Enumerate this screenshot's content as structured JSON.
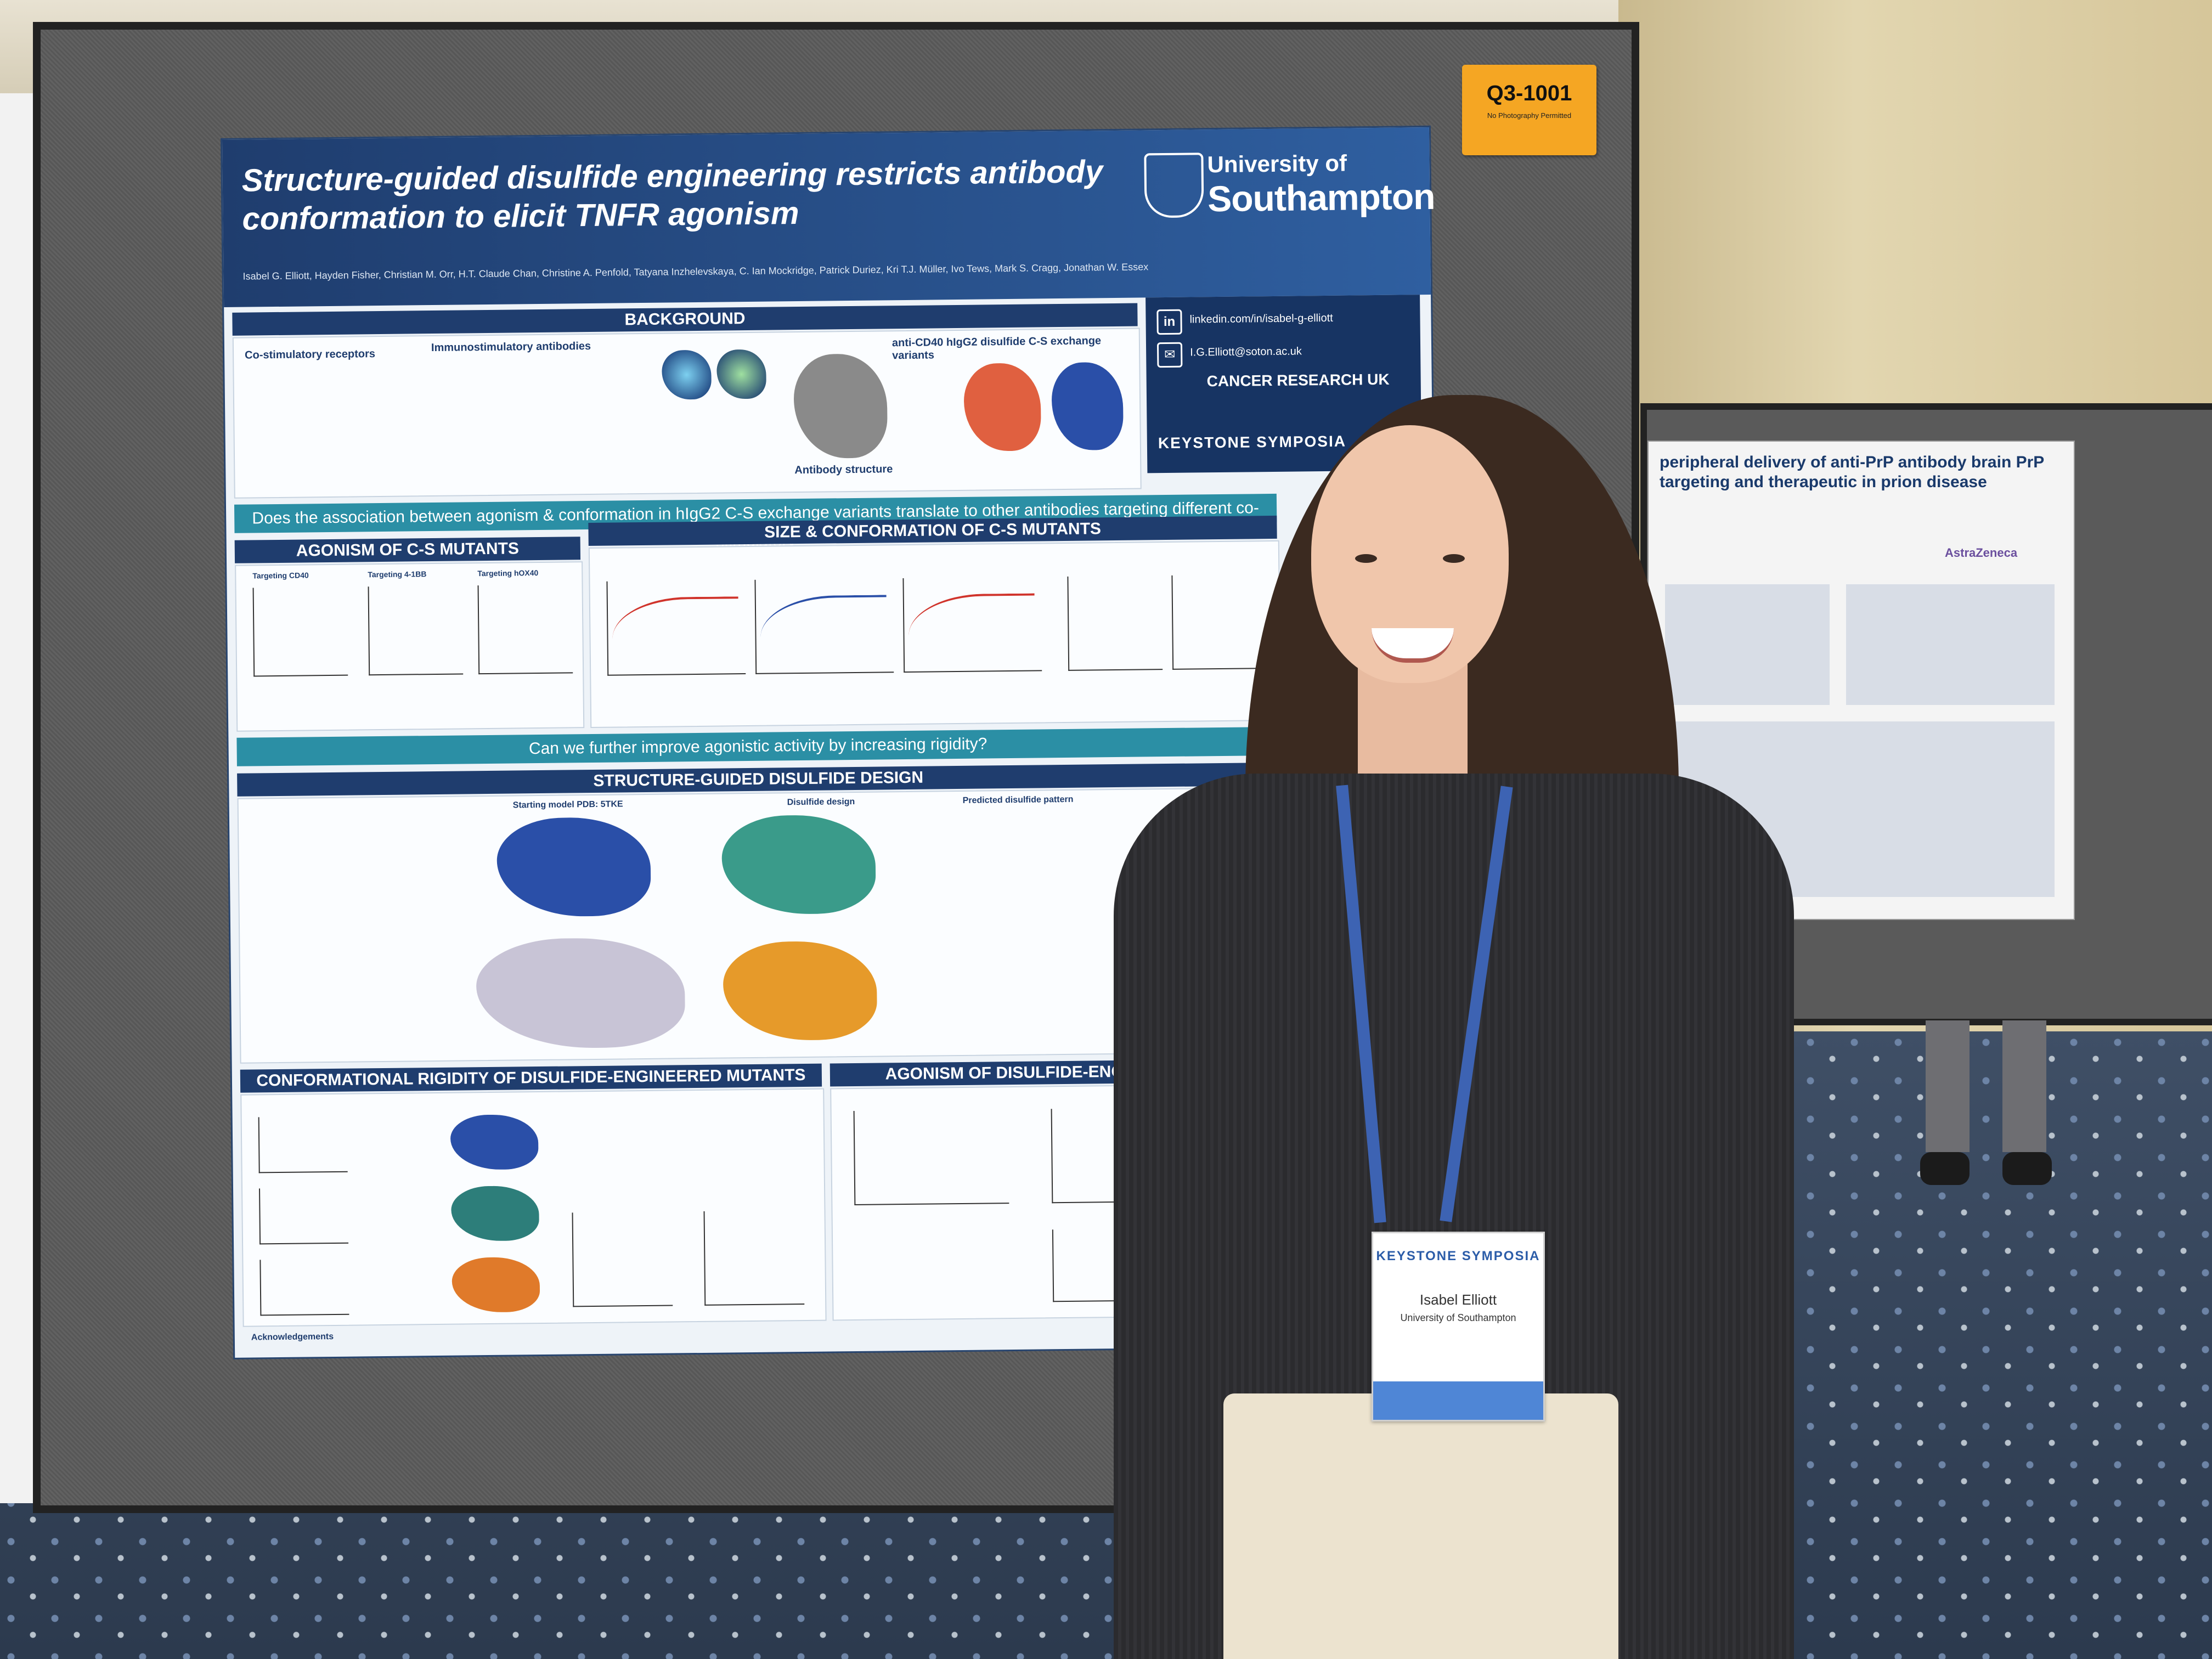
{
  "scene": {
    "description_colors": {
      "board": "#5d5d5d",
      "poster_header": "#1f3d6e",
      "tag": "#f5a623",
      "lanyard": "#3d63b3"
    }
  },
  "tag": {
    "code": "Q3-1001",
    "note": "No Photography Permitted"
  },
  "poster": {
    "title": "Structure-guided disulfide engineering restricts antibody conformation to elicit TNFR agonism",
    "authors": "Isabel G. Elliott, Hayden Fisher, Christian M. Orr, H.T. Claude Chan, Christine A. Penfold, Tatyana Inzhelevskaya, C. Ian Mockridge, Patrick Duriez, Kri T.J. Müller, Ivo Tews, Mark S. Cragg, Jonathan W. Essex",
    "university_line1": "University of",
    "university_line2": "Southampton",
    "contact": {
      "linkedin": "linkedin.com/in/isabel-g-elliott",
      "email": "I.G.Elliott@soton.ac.uk",
      "funder": "CANCER RESEARCH UK",
      "keystone": "KEYSTONE SYMPOSIA"
    },
    "sections": {
      "background": "BACKGROUND",
      "costim": "Co-stimulatory receptors",
      "immuno": "Immunostimulatory antibodies",
      "cs_variants": "anti-CD40 hIgG2 disulfide C-S exchange variants",
      "antibody_structure": "Antibody structure",
      "question1": "Does the association between agonism & conformation in hIgG2 C-S exchange variants translate to other antibodies targeting different co-stimulatory",
      "agonism_cs": "AGONISM OF C-S MUTANTS",
      "size_conf": "SIZE & CONFORMATION OF C-S MUTANTS",
      "question2": "Can we further improve agonistic activity by increasing rigidity?",
      "structure_guided": "STRUCTURE-GUIDED DISULFIDE DESIGN",
      "starting_model": "Starting model PDB: 5TKE",
      "disulfide_design": "Disulfide design",
      "predicted": "Predicted disulfide pattern",
      "rigidity": "CONFORMATIONAL RIGIDITY OF DISULFIDE-ENGINEERED MUTANTS",
      "agonism_de": "AGONISM OF DISULFIDE-ENGINEERED MU",
      "acknowledgements": "Acknowledgements"
    },
    "plot_titles": [
      "Targeting CD40",
      "Targeting 4-1BB",
      "Targeting hOX40"
    ]
  },
  "side_poster": {
    "title": "peripheral delivery of anti-PrP antibody brain PrP targeting and therapeutic in prion disease",
    "logo": "AstraZeneca"
  },
  "badge": {
    "org": "KEYSTONE SYMPOSIA",
    "name": "Isabel Elliott",
    "affiliation": "University of Southampton"
  }
}
